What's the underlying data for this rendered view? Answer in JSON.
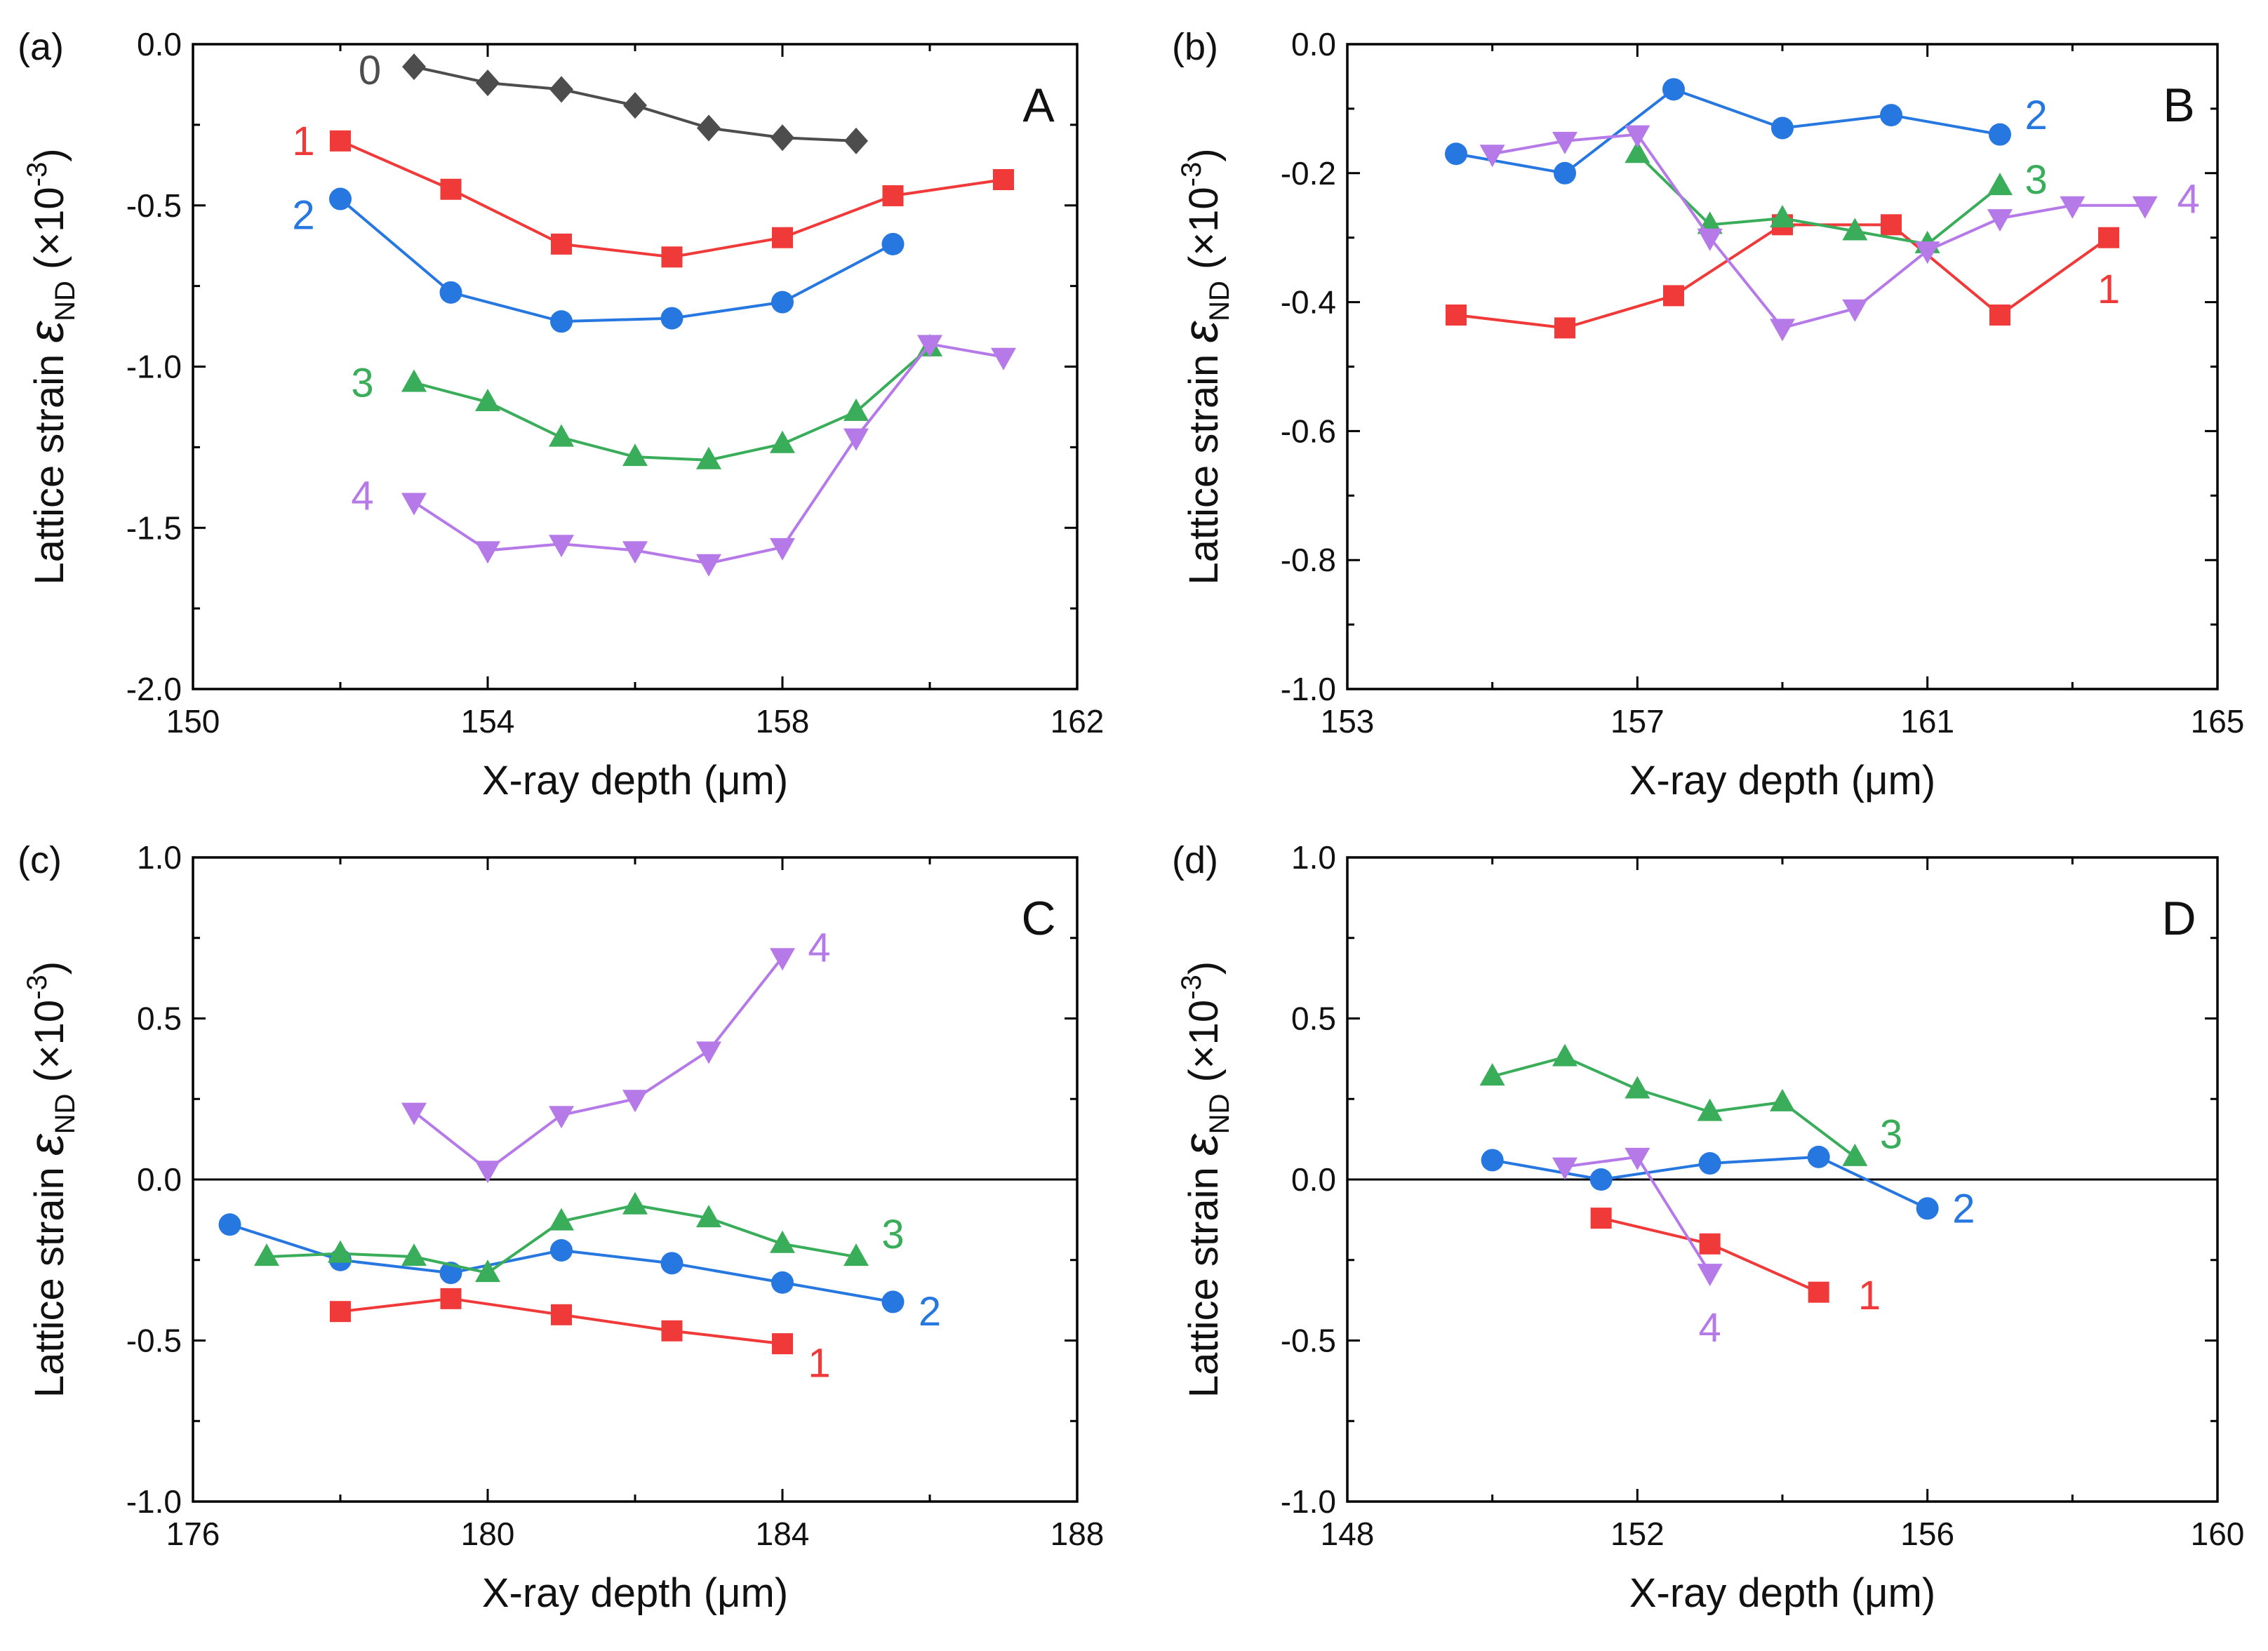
{
  "figure": {
    "colors": {
      "0": "#4d4d4d",
      "1": "#f03a3a",
      "2": "#2677e0",
      "3": "#3aad5a",
      "4": "#b57ae8",
      "axis": "#000000"
    },
    "markers": {
      "0": "diamond",
      "1": "square",
      "2": "circle",
      "3": "triangle-up",
      "4": "triangle-down"
    },
    "ylabel_parts": {
      "main": "Lattice strain ",
      "symbol": "ε",
      "sub": "ND",
      "unit_open": " (×10",
      "unit_exp": "-3",
      "unit_close": ")"
    }
  },
  "chart_data": [
    {
      "type": "line",
      "panel_label": "(a)",
      "title": "A",
      "xlabel": "X-ray depth (μm)",
      "xlim": [
        150,
        162
      ],
      "xticks": [
        150,
        154,
        158,
        162
      ],
      "xtick_labels": [
        "150",
        "154",
        "158",
        "162"
      ],
      "ylim": [
        -2.0,
        0.0
      ],
      "yticks": [
        -2.0,
        -1.5,
        -1.0,
        -0.5,
        0.0
      ],
      "ytick_labels": [
        "-2.0",
        "-1.5",
        "-1.0",
        "-0.5",
        "0.0"
      ],
      "zero_line": false,
      "series": [
        {
          "name": "0",
          "x": [
            153,
            154,
            155,
            156,
            157,
            158,
            159
          ],
          "y": [
            -0.07,
            -0.12,
            -0.14,
            -0.19,
            -0.26,
            -0.29,
            -0.3
          ],
          "label_pos": [
            152.4,
            -0.08
          ]
        },
        {
          "name": "1",
          "x": [
            152,
            153.5,
            155,
            156.5,
            158,
            159.5,
            161
          ],
          "y": [
            -0.3,
            -0.45,
            -0.62,
            -0.66,
            -0.6,
            -0.47,
            -0.42
          ],
          "label_pos": [
            151.5,
            -0.3
          ]
        },
        {
          "name": "2",
          "x": [
            152,
            153.5,
            155,
            156.5,
            158,
            159.5
          ],
          "y": [
            -0.48,
            -0.77,
            -0.86,
            -0.85,
            -0.8,
            -0.62
          ],
          "label_pos": [
            151.5,
            -0.53
          ]
        },
        {
          "name": "3",
          "x": [
            153,
            154,
            155,
            156,
            157,
            158,
            159,
            160
          ],
          "y": [
            -1.05,
            -1.11,
            -1.22,
            -1.28,
            -1.29,
            -1.24,
            -1.14,
            -0.94
          ],
          "label_pos": [
            152.3,
            -1.05
          ]
        },
        {
          "name": "4",
          "x": [
            153,
            154,
            155,
            156,
            157,
            158,
            159,
            160,
            161
          ],
          "y": [
            -1.42,
            -1.57,
            -1.55,
            -1.57,
            -1.61,
            -1.56,
            -1.22,
            -0.93,
            -0.97
          ],
          "label_pos": [
            152.3,
            -1.4
          ]
        }
      ]
    },
    {
      "type": "line",
      "panel_label": "(b)",
      "title": "B",
      "xlabel": "X-ray depth (μm)",
      "xlim": [
        153,
        165
      ],
      "xticks": [
        153,
        157,
        161,
        165
      ],
      "xtick_labels": [
        "153",
        "157",
        "161",
        "165"
      ],
      "ylim": [
        -1.0,
        0.0
      ],
      "yticks": [
        -1.0,
        -0.8,
        -0.6,
        -0.4,
        -0.2,
        0.0
      ],
      "ytick_labels": [
        "-1.0",
        "-0.8",
        "-0.6",
        "-0.4",
        "-0.2",
        "0.0"
      ],
      "zero_line": false,
      "series": [
        {
          "name": "1",
          "x": [
            154.5,
            156,
            157.5,
            159,
            160.5,
            162,
            163.5
          ],
          "y": [
            -0.42,
            -0.44,
            -0.39,
            -0.28,
            -0.28,
            -0.42,
            -0.3
          ],
          "label_pos": [
            163.5,
            -0.38
          ]
        },
        {
          "name": "2",
          "x": [
            154.5,
            156,
            157.5,
            159,
            160.5,
            162
          ],
          "y": [
            -0.17,
            -0.2,
            -0.07,
            -0.13,
            -0.11,
            -0.14
          ],
          "label_pos": [
            162.5,
            -0.11
          ]
        },
        {
          "name": "3",
          "x": [
            157,
            158,
            159,
            160,
            161,
            162
          ],
          "y": [
            -0.17,
            -0.28,
            -0.27,
            -0.29,
            -0.31,
            -0.22
          ],
          "label_pos": [
            162.5,
            -0.21
          ]
        },
        {
          "name": "4",
          "x": [
            155,
            156,
            157,
            158,
            159,
            160,
            161,
            162,
            163,
            164
          ],
          "y": [
            -0.17,
            -0.15,
            -0.14,
            -0.3,
            -0.44,
            -0.41,
            -0.32,
            -0.27,
            -0.25,
            -0.25
          ],
          "label_pos": [
            164.6,
            -0.24
          ]
        }
      ]
    },
    {
      "type": "line",
      "panel_label": "(c)",
      "title": "C",
      "xlabel": "X-ray depth (μm)",
      "xlim": [
        176,
        188
      ],
      "xticks": [
        176,
        180,
        184,
        188
      ],
      "xtick_labels": [
        "176",
        "180",
        "184",
        "188"
      ],
      "ylim": [
        -1.0,
        1.0
      ],
      "yticks": [
        -1.0,
        -0.5,
        0.0,
        0.5,
        1.0
      ],
      "ytick_labels": [
        "-1.0",
        "-0.5",
        "0.0",
        "0.5",
        "1.0"
      ],
      "zero_line": true,
      "series": [
        {
          "name": "1",
          "x": [
            178,
            179.5,
            181,
            182.5,
            184
          ],
          "y": [
            -0.41,
            -0.37,
            -0.42,
            -0.47,
            -0.51
          ],
          "label_pos": [
            184.5,
            -0.57
          ]
        },
        {
          "name": "2",
          "x": [
            176.5,
            178,
            179.5,
            181,
            182.5,
            184,
            185.5
          ],
          "y": [
            -0.14,
            -0.25,
            -0.29,
            -0.22,
            -0.26,
            -0.32,
            -0.38
          ],
          "label_pos": [
            186,
            -0.41
          ]
        },
        {
          "name": "3",
          "x": [
            177,
            178,
            179,
            180,
            181,
            182,
            183,
            184,
            185
          ],
          "y": [
            -0.24,
            -0.23,
            -0.24,
            -0.29,
            -0.13,
            -0.08,
            -0.12,
            -0.2,
            -0.24
          ],
          "label_pos": [
            185.5,
            -0.17
          ]
        },
        {
          "name": "4",
          "x": [
            179,
            180,
            181,
            182,
            183,
            184
          ],
          "y": [
            0.21,
            0.03,
            0.2,
            0.25,
            0.4,
            0.69
          ],
          "label_pos": [
            184.5,
            0.72
          ]
        }
      ]
    },
    {
      "type": "line",
      "panel_label": "(d)",
      "title": "D",
      "xlabel": "X-ray depth (μm)",
      "xlim": [
        148,
        160
      ],
      "xticks": [
        148,
        152,
        156,
        160
      ],
      "xtick_labels": [
        "148",
        "152",
        "156",
        "160"
      ],
      "ylim": [
        -1.0,
        1.0
      ],
      "yticks": [
        -1.0,
        -0.5,
        0.0,
        0.5,
        1.0
      ],
      "ytick_labels": [
        "-1.0",
        "-0.5",
        "0.0",
        "0.5",
        "1.0"
      ],
      "zero_line": true,
      "series": [
        {
          "name": "1",
          "x": [
            151.5,
            153,
            154.5
          ],
          "y": [
            -0.12,
            -0.2,
            -0.35
          ],
          "label_pos": [
            155.2,
            -0.36
          ]
        },
        {
          "name": "2",
          "x": [
            150,
            151.5,
            153,
            154.5,
            156
          ],
          "y": [
            0.06,
            0.0,
            0.05,
            0.07,
            -0.09
          ],
          "label_pos": [
            156.5,
            -0.09
          ]
        },
        {
          "name": "3",
          "x": [
            150,
            151,
            152,
            153,
            154,
            155
          ],
          "y": [
            0.32,
            0.38,
            0.28,
            0.21,
            0.24,
            0.07
          ],
          "label_pos": [
            155.5,
            0.14
          ]
        },
        {
          "name": "4",
          "x": [
            151,
            152,
            153
          ],
          "y": [
            0.04,
            0.07,
            -0.29
          ],
          "label_pos": [
            153,
            -0.46
          ]
        }
      ]
    }
  ]
}
